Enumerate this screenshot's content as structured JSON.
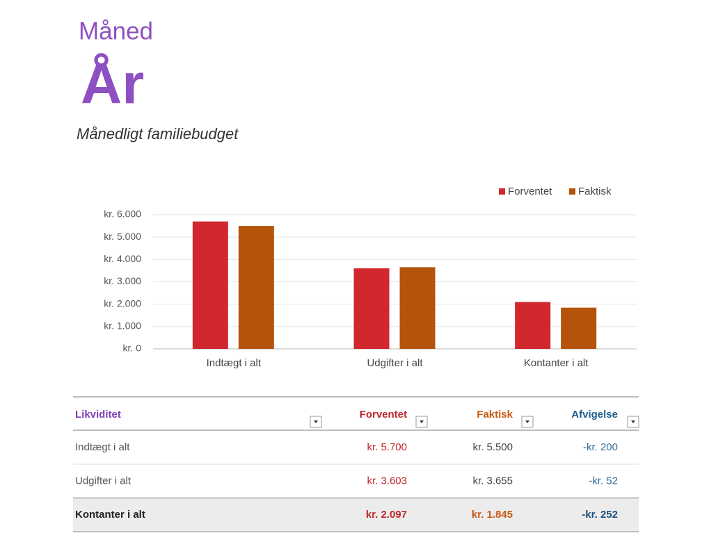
{
  "header": {
    "month": "Måned",
    "year": "År",
    "subtitle": "Månedligt familiebudget"
  },
  "chart_data": {
    "type": "bar",
    "categories": [
      "Indtægt i alt",
      "Udgifter i alt",
      "Kontanter i alt"
    ],
    "series": [
      {
        "name": "Forventet",
        "color": "#d0282e",
        "values": [
          5700,
          3603,
          2097
        ]
      },
      {
        "name": "Faktisk",
        "color": "#b5530a",
        "values": [
          5500,
          3655,
          1845
        ]
      }
    ],
    "ylim": [
      0,
      6000
    ],
    "yticks": [
      {
        "value": 0,
        "label": "kr. 0"
      },
      {
        "value": 1000,
        "label": "kr. 1.000"
      },
      {
        "value": 2000,
        "label": "kr. 2.000"
      },
      {
        "value": 3000,
        "label": "kr. 3.000"
      },
      {
        "value": 4000,
        "label": "kr. 4.000"
      },
      {
        "value": 5000,
        "label": "kr. 5.000"
      },
      {
        "value": 6000,
        "label": "kr. 6.000"
      }
    ],
    "grid": true,
    "legend": "top-right"
  },
  "table": {
    "columns": [
      "Likviditet",
      "Forventet",
      "Faktisk",
      "Afvigelse"
    ],
    "rows": [
      [
        "Indtægt i alt",
        "kr. 5.700",
        "kr. 5.500",
        "-kr. 200"
      ],
      [
        "Udgifter i alt",
        "kr. 3.603",
        "kr. 3.655",
        "-kr. 52"
      ],
      [
        "Kontanter i alt",
        "kr. 2.097",
        "kr. 1.845",
        "-kr. 252"
      ]
    ]
  }
}
